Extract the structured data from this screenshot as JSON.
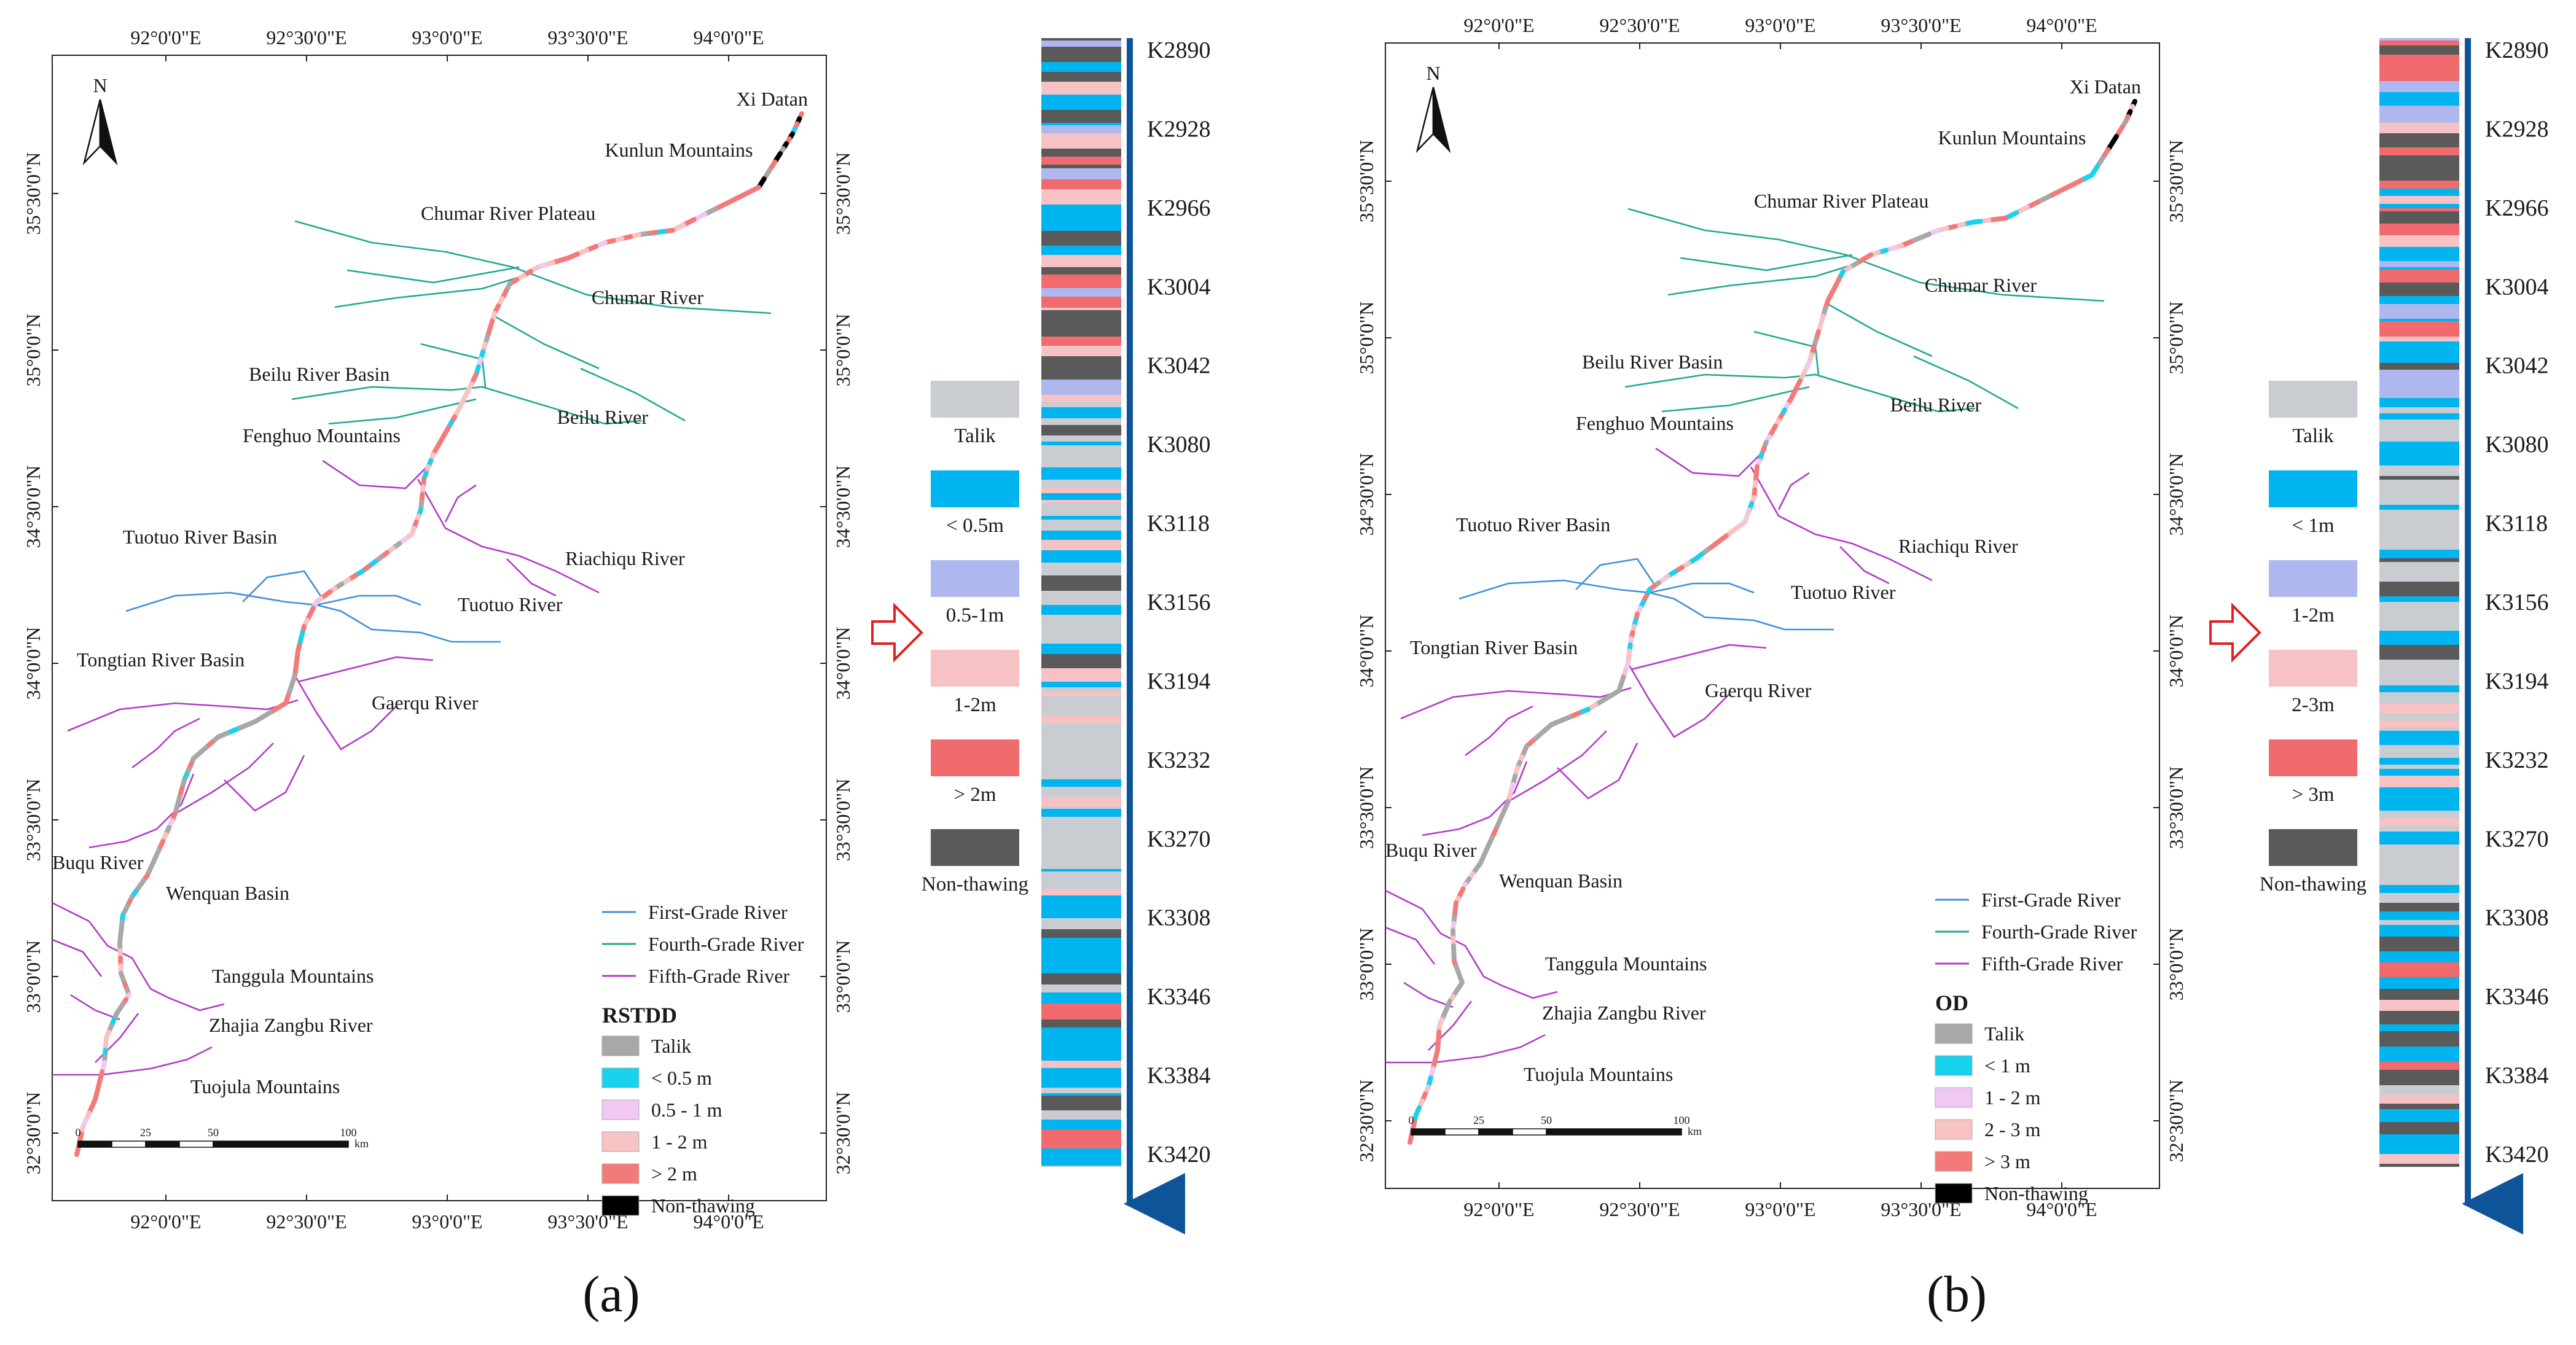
{
  "colors": {
    "talik": "#a8a8a8",
    "lt_low": "#19d2ee",
    "mid1": "#f0c8f4",
    "mid2": "#f8c3c3",
    "high": "#f47a7a",
    "nonthaw_map": "#000000",
    "first_grade": "#3f8fd8",
    "fourth_grade": "#20a892",
    "fifth_grade": "#b23ac8",
    "strip_talik": "#c9ccd0",
    "strip_low": "#00b4f0",
    "strip_mid": "#aeb8ee",
    "strip_mid2": "#f7c2c4",
    "strip_high": "#f06a6e",
    "strip_non": "#5a5a5a",
    "axis_arrow": "#0e5499",
    "highlight_arrow": "#e02020"
  },
  "panels": [
    {
      "label": "(a)",
      "map": {
        "north": "N",
        "lon_ticks": [
          "92°0'0\"E",
          "92°30'0\"E",
          "93°0'0\"E",
          "93°30'0\"E",
          "94°0'0\"E"
        ],
        "lat_ticks": [
          "35°30'0\"N",
          "35°0'0\"N",
          "34°30'0\"N",
          "34°0'0\"N",
          "33°30'0\"N",
          "33°0'0\"N",
          "32°30'0\"N"
        ],
        "places": [
          "Xi Datan",
          "Kunlun Mountains",
          "Chumar River Plateau",
          "Chumar River",
          "Beilu River Basin",
          "Beilu River",
          "Fenghuo Mountains",
          "Riachiqu River",
          "Tuotuo River Basin",
          "Tuotuo River",
          "Tongtian River Basin",
          "Gaerqu River",
          "Buqu River",
          "Wenquan Basin",
          "Tanggula Mountains",
          "Zhajia Zangbu River",
          "Tuojula Mountains"
        ],
        "scale": {
          "ticks": [
            "0",
            "25",
            "50",
            "100"
          ],
          "unit": "km"
        },
        "rivers_legend": [
          "First-Grade River",
          "Fourth-Grade River",
          "Fifth-Grade River"
        ],
        "legend_title": "RSTDD",
        "legend_items": [
          "Talik",
          "< 0.5 m",
          "0.5 - 1 m",
          "1 - 2 m",
          "> 2 m",
          "Non-thawing"
        ]
      },
      "strip_legend": [
        "Talik",
        "< 0.5m",
        "0.5-1m",
        "1-2m",
        "> 2m",
        "Non-thawing"
      ]
    },
    {
      "label": "(b)",
      "map": {
        "north": "N",
        "lon_ticks": [
          "92°0'0\"E",
          "92°30'0\"E",
          "93°0'0\"E",
          "93°30'0\"E",
          "94°0'0\"E"
        ],
        "lat_ticks": [
          "35°30'0\"N",
          "35°0'0\"N",
          "34°30'0\"N",
          "34°0'0\"N",
          "33°30'0\"N",
          "33°0'0\"N",
          "32°30'0\"N"
        ],
        "places": [
          "Xi Datan",
          "Kunlun Mountains",
          "Chumar River Plateau",
          "Chumar River",
          "Beilu River Basin",
          "Beilu River",
          "Fenghuo Mountains",
          "Riachiqu River",
          "Tuotuo River Basin",
          "Tuotuo River",
          "Tongtian River Basin",
          "Gaerqu River",
          "Buqu River",
          "Wenquan Basin",
          "Tanggula Mountains",
          "Zhajia Zangbu River",
          "Tuojula Mountains"
        ],
        "scale": {
          "ticks": [
            "0",
            "25",
            "50",
            "100"
          ],
          "unit": "km"
        },
        "rivers_legend": [
          "First-Grade River",
          "Fourth-Grade River",
          "Fifth-Grade River"
        ],
        "legend_title": "OD",
        "legend_items": [
          "Talik",
          "< 1 m",
          "1 - 2 m",
          "2 - 3 m",
          "> 3 m",
          "Non-thawing"
        ]
      },
      "strip_legend": [
        "Talik",
        "< 1m",
        "1-2m",
        "2-3m",
        "> 3m",
        "Non-thawing"
      ]
    }
  ],
  "mileage": [
    "K2890",
    "K2928",
    "K2966",
    "K3004",
    "K3042",
    "K3080",
    "K3118",
    "K3156",
    "K3194",
    "K3232",
    "K3270",
    "K3308",
    "K3346",
    "K3384",
    "K3420"
  ]
}
